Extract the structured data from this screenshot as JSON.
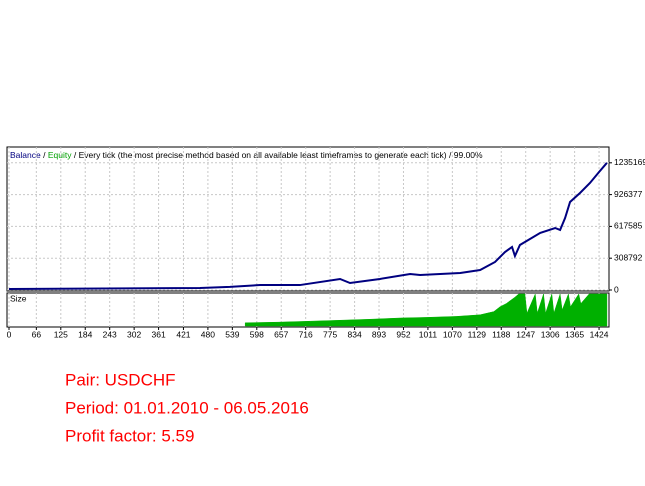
{
  "chart_data": [
    {
      "type": "line",
      "subtitle": "Every tick (the most precise method based on all available least timeframes to generate each tick)",
      "quality": "99.00%",
      "separator": "/",
      "x": [
        0,
        461,
        533,
        606,
        702,
        799,
        823,
        895,
        968,
        992,
        1089,
        1137,
        1173,
        1197,
        1214,
        1221,
        1233,
        1282,
        1318,
        1330,
        1342,
        1354,
        1378,
        1402,
        1424,
        1443
      ],
      "series": [
        {
          "name": "Balance",
          "color": "#000080",
          "values": [
            10000,
            20000,
            30000,
            48000,
            48000,
            107000,
            68000,
            107000,
            155000,
            146000,
            165000,
            194000,
            272000,
            369000,
            418000,
            330000,
            437000,
            554000,
            602000,
            583000,
            699000,
            855000,
            942000,
            1039000,
            1146000,
            1235169
          ]
        }
      ],
      "equity": {
        "name": "Equity",
        "color": "#00a000"
      },
      "xlim": [
        0,
        1448
      ],
      "ylim": [
        0,
        1388600
      ],
      "xticks": [
        0,
        66,
        125,
        184,
        243,
        302,
        361,
        421,
        480,
        539,
        598,
        657,
        716,
        775,
        834,
        893,
        952,
        1011,
        1070,
        1129,
        1188,
        1247,
        1306,
        1365,
        1424
      ],
      "yticks": [
        0,
        308792,
        617585,
        926377,
        1235169
      ],
      "grid": true
    },
    {
      "type": "area",
      "title": "Size",
      "color": "#00b000",
      "x": [
        570,
        650,
        727,
        800,
        870,
        944,
        1010,
        1080,
        1137,
        1170,
        1185,
        1200,
        1221,
        1230,
        1245,
        1250,
        1270,
        1275,
        1290,
        1295,
        1310,
        1315,
        1330,
        1335,
        1350,
        1355,
        1375,
        1380,
        1400,
        1443
      ],
      "values": [
        1,
        1.2,
        1.5,
        1.8,
        2.1,
        2.5,
        2.7,
        3,
        3.5,
        4.5,
        6,
        7,
        9,
        10,
        10,
        4,
        10,
        4,
        10,
        4,
        10,
        4,
        10,
        5,
        10,
        6,
        10,
        7,
        10,
        10
      ],
      "xlim": [
        0,
        1448
      ],
      "ylim": [
        0,
        10
      ]
    }
  ],
  "info": {
    "lines": [
      "Pair: USDCHF",
      "Period: 01.01.2010 - 06.05.2016",
      "Profit factor: 5.59"
    ]
  }
}
